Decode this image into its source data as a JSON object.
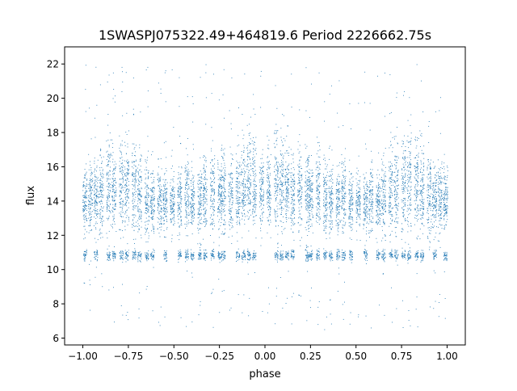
{
  "chart_data": {
    "type": "scatter",
    "title": "1SWASPJ075322.49+464819.6 Period 2226662.75s",
    "xlabel": "phase",
    "ylabel": "flux",
    "xlim": [
      -1.1,
      1.1
    ],
    "ylim": [
      5.6,
      23.0
    ],
    "xticks": [
      {
        "value": -1.0,
        "label": "−1.00"
      },
      {
        "value": -0.75,
        "label": "−0.75"
      },
      {
        "value": -0.5,
        "label": "−0.50"
      },
      {
        "value": -0.25,
        "label": "−0.25"
      },
      {
        "value": 0.0,
        "label": "0.00"
      },
      {
        "value": 0.25,
        "label": "0.25"
      },
      {
        "value": 0.5,
        "label": "0.50"
      },
      {
        "value": 0.75,
        "label": "0.75"
      },
      {
        "value": 1.0,
        "label": "1.00"
      }
    ],
    "yticks": [
      {
        "value": 6,
        "label": "6"
      },
      {
        "value": 8,
        "label": "8"
      },
      {
        "value": 10,
        "label": "10"
      },
      {
        "value": 12,
        "label": "12"
      },
      {
        "value": 14,
        "label": "14"
      },
      {
        "value": 16,
        "label": "16"
      },
      {
        "value": 18,
        "label": "18"
      },
      {
        "value": 20,
        "label": "20"
      },
      {
        "value": 22,
        "label": "22"
      }
    ],
    "grid": false,
    "marker_color": "#1f77b4",
    "series": [
      {
        "symmetric_about_phase_zero": true,
        "clumps": [
          {
            "phase": 0.02,
            "center": 14.6,
            "spread": 2.0,
            "has_low": false
          },
          {
            "phase": 0.06,
            "center": 15.0,
            "spread": 2.6,
            "has_low": true
          },
          {
            "phase": 0.09,
            "center": 15.2,
            "spread": 2.5,
            "has_low": true
          },
          {
            "phase": 0.12,
            "center": 14.8,
            "spread": 2.2,
            "has_low": true
          },
          {
            "phase": 0.15,
            "center": 14.4,
            "spread": 2.0,
            "has_low": true
          },
          {
            "phase": 0.19,
            "center": 14.3,
            "spread": 2.2,
            "has_low": false
          },
          {
            "phase": 0.23,
            "center": 14.5,
            "spread": 2.5,
            "has_low": true
          },
          {
            "phase": 0.25,
            "center": 14.3,
            "spread": 1.6,
            "has_low": true
          },
          {
            "phase": 0.29,
            "center": 14.6,
            "spread": 2.3,
            "has_low": true
          },
          {
            "phase": 0.33,
            "center": 14.3,
            "spread": 1.8,
            "has_low": true
          },
          {
            "phase": 0.36,
            "center": 14.2,
            "spread": 2.0,
            "has_low": true
          },
          {
            "phase": 0.4,
            "center": 14.0,
            "spread": 1.6,
            "has_low": true
          },
          {
            "phase": 0.43,
            "center": 14.4,
            "spread": 2.1,
            "has_low": true
          },
          {
            "phase": 0.47,
            "center": 14.0,
            "spread": 1.7,
            "has_low": true
          },
          {
            "phase": 0.51,
            "center": 13.9,
            "spread": 1.4,
            "has_low": false
          },
          {
            "phase": 0.55,
            "center": 14.0,
            "spread": 1.5,
            "has_low": true
          },
          {
            "phase": 0.58,
            "center": 14.2,
            "spread": 1.8,
            "has_low": false
          },
          {
            "phase": 0.62,
            "center": 13.9,
            "spread": 1.5,
            "has_low": true
          },
          {
            "phase": 0.65,
            "center": 14.2,
            "spread": 2.0,
            "has_low": true
          },
          {
            "phase": 0.69,
            "center": 14.6,
            "spread": 2.3,
            "has_low": true
          },
          {
            "phase": 0.72,
            "center": 14.8,
            "spread": 2.6,
            "has_low": true
          },
          {
            "phase": 0.76,
            "center": 14.9,
            "spread": 2.4,
            "has_low": true
          },
          {
            "phase": 0.79,
            "center": 15.1,
            "spread": 2.6,
            "has_low": true
          },
          {
            "phase": 0.83,
            "center": 14.8,
            "spread": 2.2,
            "has_low": true
          },
          {
            "phase": 0.86,
            "center": 14.7,
            "spread": 2.3,
            "has_low": true
          },
          {
            "phase": 0.9,
            "center": 14.4,
            "spread": 2.1,
            "has_low": false
          },
          {
            "phase": 0.93,
            "center": 14.2,
            "spread": 1.7,
            "has_low": true
          },
          {
            "phase": 0.96,
            "center": 14.3,
            "spread": 1.8,
            "has_low": false
          },
          {
            "phase": 0.99,
            "center": 14.1,
            "spread": 1.6,
            "has_low": true
          }
        ],
        "low_band": {
          "center": 10.85,
          "spread": 0.3
        }
      }
    ]
  }
}
